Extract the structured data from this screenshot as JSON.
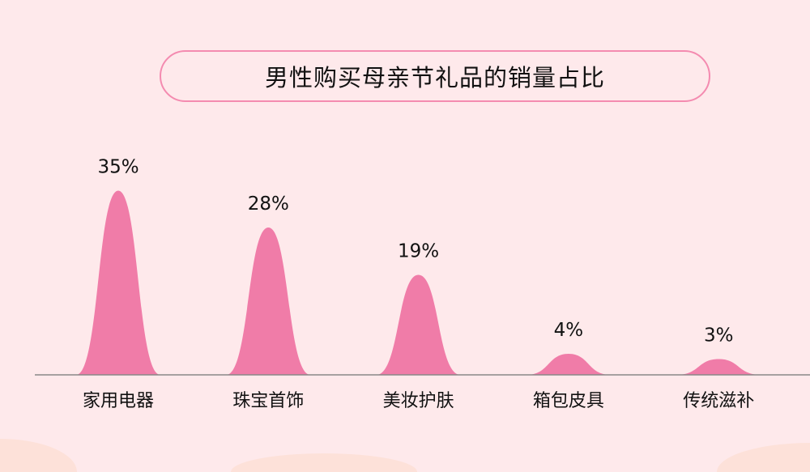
{
  "chart_data": {
    "type": "area",
    "title": "男性购买母亲节礼品的销量占比",
    "categories": [
      "家用电器",
      "珠宝首饰",
      "美妆护肤",
      "箱包皮具",
      "传统滋补"
    ],
    "values": [
      35,
      28,
      19,
      4,
      3
    ],
    "data_labels": [
      "35%",
      "28%",
      "19%",
      "4%",
      "3%"
    ],
    "unit": "%",
    "grid": false,
    "colors": {
      "mark": "#f07ca8",
      "background": "#fee9eb",
      "title_border": "#f48bb0",
      "axis": "#888888"
    }
  }
}
